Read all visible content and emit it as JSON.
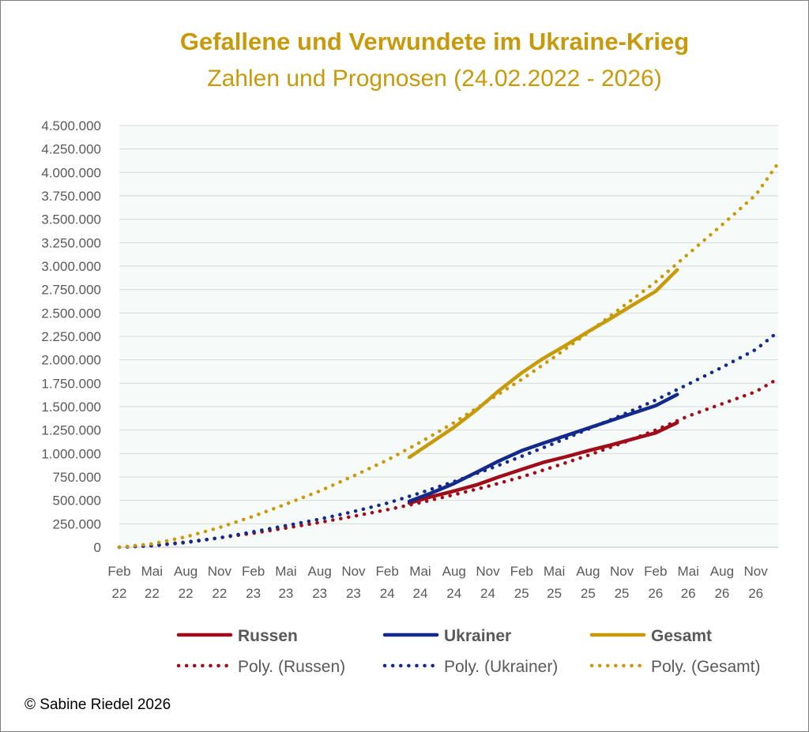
{
  "colors": {
    "russen": "#a00d1a",
    "ukrainer": "#132a8c",
    "gesamt": "#c79a0b",
    "grid": "#d9d9d9",
    "plot_bg": "#f6fbf9",
    "title": "#c79a0b",
    "axis_text": "#595959"
  },
  "copyright": "©  Sabine Riedel 2026",
  "chart_data": {
    "type": "line",
    "title": "Gefallene und Verwundete im Ukraine-Krieg",
    "subtitle": "Zahlen und Prognosen (24.02.2022 - 2026)",
    "xlabel": "",
    "ylabel": "",
    "ylim": [
      0,
      4500000
    ],
    "xlim": [
      "2022-02-01",
      "2027-01-01"
    ],
    "grid": "horizontal",
    "legend_position": "bottom",
    "y_ticks": [
      {
        "value": 0,
        "label": "0"
      },
      {
        "value": 250000,
        "label": "250.000"
      },
      {
        "value": 500000,
        "label": "500.000"
      },
      {
        "value": 750000,
        "label": "750.000"
      },
      {
        "value": 1000000,
        "label": "1.000.000"
      },
      {
        "value": 1250000,
        "label": "1.250.000"
      },
      {
        "value": 1500000,
        "label": "1.500.000"
      },
      {
        "value": 1750000,
        "label": "1.750.000"
      },
      {
        "value": 2000000,
        "label": "2.000.000"
      },
      {
        "value": 2250000,
        "label": "2.250.000"
      },
      {
        "value": 2500000,
        "label": "2.500.000"
      },
      {
        "value": 2750000,
        "label": "2.750.000"
      },
      {
        "value": 3000000,
        "label": "3.000.000"
      },
      {
        "value": 3250000,
        "label": "3.250.000"
      },
      {
        "value": 3500000,
        "label": "3.500.000"
      },
      {
        "value": 3750000,
        "label": "3.750.000"
      },
      {
        "value": 4000000,
        "label": "4.000.000"
      },
      {
        "value": 4250000,
        "label": "4.250.000"
      },
      {
        "value": 4500000,
        "label": "4.500.000"
      }
    ],
    "x_ticks": [
      {
        "date": "2022-02-01",
        "month": "Feb",
        "year": "22"
      },
      {
        "date": "2022-05-01",
        "month": "Mai",
        "year": "22"
      },
      {
        "date": "2022-08-01",
        "month": "Aug",
        "year": "22"
      },
      {
        "date": "2022-11-01",
        "month": "Nov",
        "year": "22"
      },
      {
        "date": "2023-02-01",
        "month": "Feb",
        "year": "23"
      },
      {
        "date": "2023-05-01",
        "month": "Mai",
        "year": "23"
      },
      {
        "date": "2023-08-01",
        "month": "Aug",
        "year": "23"
      },
      {
        "date": "2023-11-01",
        "month": "Nov",
        "year": "23"
      },
      {
        "date": "2024-02-01",
        "month": "Feb",
        "year": "24"
      },
      {
        "date": "2024-05-01",
        "month": "Mai",
        "year": "24"
      },
      {
        "date": "2024-08-01",
        "month": "Aug",
        "year": "24"
      },
      {
        "date": "2024-11-01",
        "month": "Nov",
        "year": "24"
      },
      {
        "date": "2025-02-01",
        "month": "Feb",
        "year": "25"
      },
      {
        "date": "2025-05-01",
        "month": "Mai",
        "year": "25"
      },
      {
        "date": "2025-08-01",
        "month": "Aug",
        "year": "25"
      },
      {
        "date": "2025-11-01",
        "month": "Nov",
        "year": "25"
      },
      {
        "date": "2026-02-01",
        "month": "Feb",
        "year": "26"
      },
      {
        "date": "2026-05-01",
        "month": "Mai",
        "year": "26"
      },
      {
        "date": "2026-08-01",
        "month": "Aug",
        "year": "26"
      },
      {
        "date": "2026-11-01",
        "month": "Nov",
        "year": "26"
      }
    ],
    "series": [
      {
        "name": "Russen",
        "style": "solid",
        "color_key": "russen",
        "points": [
          [
            "2024-04-01",
            470000
          ],
          [
            "2024-06-01",
            540000
          ],
          [
            "2024-08-01",
            600000
          ],
          [
            "2024-10-01",
            665000
          ],
          [
            "2024-12-01",
            750000
          ],
          [
            "2025-02-01",
            830000
          ],
          [
            "2025-04-01",
            905000
          ],
          [
            "2025-06-01",
            965000
          ],
          [
            "2025-08-01",
            1030000
          ],
          [
            "2025-10-01",
            1090000
          ],
          [
            "2025-12-01",
            1155000
          ],
          [
            "2026-02-01",
            1220000
          ],
          [
            "2026-04-01",
            1330000
          ]
        ]
      },
      {
        "name": "Ukrainer",
        "style": "solid",
        "color_key": "ukrainer",
        "points": [
          [
            "2024-04-01",
            490000
          ],
          [
            "2024-06-01",
            580000
          ],
          [
            "2024-08-01",
            680000
          ],
          [
            "2024-10-01",
            800000
          ],
          [
            "2024-12-01",
            920000
          ],
          [
            "2025-02-01",
            1030000
          ],
          [
            "2025-04-01",
            1110000
          ],
          [
            "2025-06-01",
            1190000
          ],
          [
            "2025-08-01",
            1270000
          ],
          [
            "2025-10-01",
            1350000
          ],
          [
            "2025-12-01",
            1430000
          ],
          [
            "2026-02-01",
            1510000
          ],
          [
            "2026-04-01",
            1630000
          ]
        ]
      },
      {
        "name": "Gesamt",
        "style": "solid",
        "color_key": "gesamt",
        "points": [
          [
            "2024-04-01",
            960000
          ],
          [
            "2024-06-01",
            1120000
          ],
          [
            "2024-08-01",
            1280000
          ],
          [
            "2024-10-01",
            1465000
          ],
          [
            "2024-12-01",
            1670000
          ],
          [
            "2025-02-01",
            1860000
          ],
          [
            "2025-04-01",
            2015000
          ],
          [
            "2025-06-01",
            2155000
          ],
          [
            "2025-08-01",
            2300000
          ],
          [
            "2025-10-01",
            2440000
          ],
          [
            "2025-12-01",
            2585000
          ],
          [
            "2026-02-01",
            2730000
          ],
          [
            "2026-04-01",
            2960000
          ]
        ]
      },
      {
        "name": "Poly. (Russen)",
        "style": "dotted",
        "color_key": "russen",
        "points": [
          [
            "2022-02-01",
            0
          ],
          [
            "2022-05-01",
            18000
          ],
          [
            "2022-08-01",
            55000
          ],
          [
            "2022-11-01",
            100000
          ],
          [
            "2023-02-01",
            150000
          ],
          [
            "2023-05-01",
            205000
          ],
          [
            "2023-08-01",
            265000
          ],
          [
            "2023-11-01",
            330000
          ],
          [
            "2024-02-01",
            400000
          ],
          [
            "2024-05-01",
            475000
          ],
          [
            "2024-08-01",
            560000
          ],
          [
            "2024-11-01",
            650000
          ],
          [
            "2025-02-01",
            750000
          ],
          [
            "2025-05-01",
            860000
          ],
          [
            "2025-08-01",
            980000
          ],
          [
            "2025-11-01",
            1110000
          ],
          [
            "2026-02-01",
            1250000
          ],
          [
            "2026-05-01",
            1400000
          ],
          [
            "2026-08-01",
            1530000
          ],
          [
            "2026-11-01",
            1660000
          ],
          [
            "2027-01-01",
            1800000
          ]
        ]
      },
      {
        "name": "Poly. (Ukrainer)",
        "style": "dotted",
        "color_key": "ukrainer",
        "points": [
          [
            "2022-02-01",
            0
          ],
          [
            "2022-05-01",
            15000
          ],
          [
            "2022-08-01",
            50000
          ],
          [
            "2022-11-01",
            100000
          ],
          [
            "2023-02-01",
            165000
          ],
          [
            "2023-05-01",
            230000
          ],
          [
            "2023-08-01",
            300000
          ],
          [
            "2023-11-01",
            380000
          ],
          [
            "2024-02-01",
            470000
          ],
          [
            "2024-05-01",
            580000
          ],
          [
            "2024-08-01",
            700000
          ],
          [
            "2024-11-01",
            830000
          ],
          [
            "2025-02-01",
            970000
          ],
          [
            "2025-05-01",
            1110000
          ],
          [
            "2025-08-01",
            1260000
          ],
          [
            "2025-11-01",
            1410000
          ],
          [
            "2026-02-01",
            1570000
          ],
          [
            "2026-05-01",
            1740000
          ],
          [
            "2026-08-01",
            1920000
          ],
          [
            "2026-11-01",
            2110000
          ],
          [
            "2027-01-01",
            2300000
          ]
        ]
      },
      {
        "name": "Poly. (Gesamt)",
        "style": "dotted",
        "color_key": "gesamt",
        "points": [
          [
            "2022-02-01",
            0
          ],
          [
            "2022-05-01",
            35000
          ],
          [
            "2022-08-01",
            110000
          ],
          [
            "2022-11-01",
            210000
          ],
          [
            "2023-02-01",
            330000
          ],
          [
            "2023-05-01",
            460000
          ],
          [
            "2023-08-01",
            600000
          ],
          [
            "2023-11-01",
            760000
          ],
          [
            "2024-02-01",
            930000
          ],
          [
            "2024-05-01",
            1120000
          ],
          [
            "2024-08-01",
            1330000
          ],
          [
            "2024-11-01",
            1560000
          ],
          [
            "2025-02-01",
            1790000
          ],
          [
            "2025-05-01",
            2030000
          ],
          [
            "2025-08-01",
            2290000
          ],
          [
            "2025-11-01",
            2560000
          ],
          [
            "2026-02-01",
            2830000
          ],
          [
            "2026-05-01",
            3130000
          ],
          [
            "2026-08-01",
            3440000
          ],
          [
            "2026-11-01",
            3760000
          ],
          [
            "2027-01-01",
            4100000
          ]
        ]
      }
    ]
  }
}
